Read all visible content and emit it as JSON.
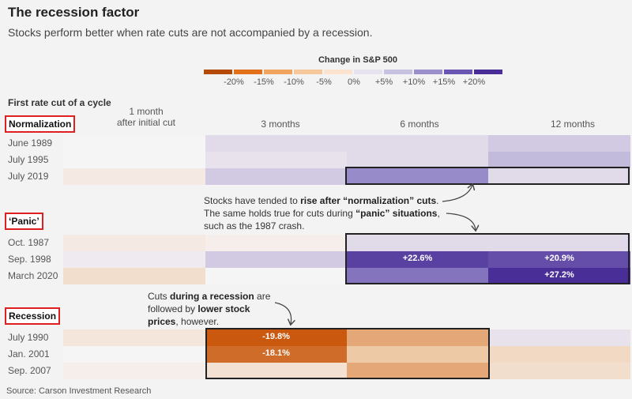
{
  "title": "The recession factor",
  "subtitle": "Stocks perform better when rate cuts are not accompanied by a recession.",
  "legend": {
    "title": "Change in S&P 500",
    "ticks": [
      "-20%",
      "-15%",
      "-10%",
      "-5%",
      "0%",
      "+5%",
      "+10%",
      "+15%",
      "+20%"
    ],
    "colors": [
      "#b34a06",
      "#e2701a",
      "#f0a45d",
      "#f6c79a",
      "#fbe3cf",
      "#e6e3ef",
      "#c7c2e0",
      "#9a8fcb",
      "#6b56b3",
      "#4a2e98"
    ]
  },
  "cycle_label": "First rate cut of a cycle",
  "columns": {
    "c1_line1": "1 month",
    "c1_line2": "after initial cut",
    "c2": "3 months",
    "c3": "6 months",
    "c4": "12 months"
  },
  "groups": {
    "normalization": "Normalization",
    "panic": "‘Panic’",
    "recession": "Recession"
  },
  "rows": {
    "june1989": "June 1989",
    "july1995": "July 1995",
    "july2019": "July 2019",
    "oct1987": "Oct. 1987",
    "sep1998": "Sep. 1998",
    "march2020": "March 2020",
    "july1990": "July 1990",
    "jan2001": "Jan. 2001",
    "sep2007": "Sep. 2007"
  },
  "annotations": {
    "a1": {
      "t1": "Stocks have tended to ",
      "b1": "rise after “normalization” cuts",
      "t2": ". The same holds true for cuts during ",
      "b2": "“panic” situations",
      "t3": ", such as the 1987 crash."
    },
    "a2": {
      "t1": "Cuts ",
      "b1": "during a recession",
      "t2": " are followed by ",
      "b2": "lower stock prices",
      "t3": ", however."
    }
  },
  "source": "Source: Carson Investment Research",
  "chart_data": {
    "type": "heatmap",
    "title": "The recession factor",
    "subtitle": "Stocks perform better when rate cuts are not accompanied by a recession.",
    "color_scale_label": "Change in S&P 500",
    "columns": [
      "1 month after initial cut",
      "3 months",
      "6 months",
      "12 months"
    ],
    "groups": [
      {
        "name": "Normalization",
        "rows": [
          {
            "label": "June 1989",
            "values": [
              null,
              3,
              3,
              5
            ]
          },
          {
            "label": "July 1995",
            "values": [
              null,
              2,
              3,
              7
            ]
          },
          {
            "label": "July 2019",
            "values": [
              -2,
              5,
              13,
              3
            ]
          }
        ]
      },
      {
        "name": "‘Panic’",
        "rows": [
          {
            "label": "Oct. 1987",
            "values": [
              -2,
              -1,
              3,
              3
            ]
          },
          {
            "label": "Sep. 1998",
            "values": [
              1,
              5,
              22.6,
              20.9
            ]
          },
          {
            "label": "March 2020",
            "values": [
              -5,
              null,
              16,
              27.2
            ]
          }
        ]
      },
      {
        "name": "Recession",
        "rows": [
          {
            "label": "July 1990",
            "values": [
              -3,
              -19.8,
              -13,
              2
            ]
          },
          {
            "label": "Jan. 2001",
            "values": [
              null,
              -18.1,
              -10,
              -6
            ]
          },
          {
            "label": "Sep. 2007",
            "values": [
              -1,
              -4,
              -13,
              -5
            ]
          }
        ]
      }
    ],
    "labeled_values": [
      "+22.6%",
      "+20.9%",
      "+27.2%",
      "-19.8%",
      "-18.1%"
    ]
  }
}
